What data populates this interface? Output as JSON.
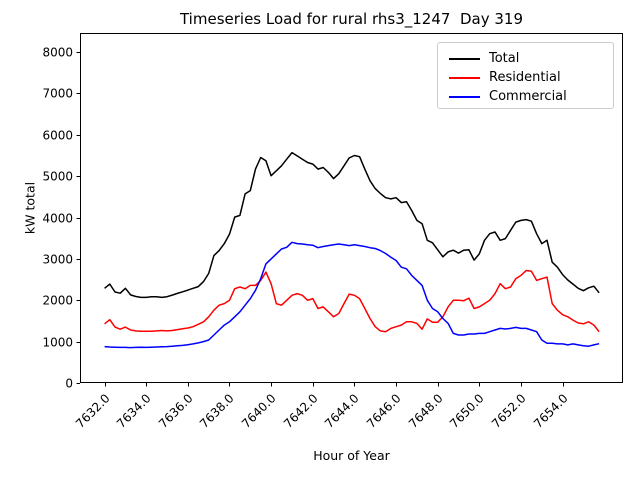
{
  "chart_data": {
    "type": "line",
    "title": "Timeseries Load for rural rhs3_1247  Day 319",
    "xlabel": "Hour of Year",
    "ylabel": "kW total",
    "xlim": [
      7630.82,
      7656.9
    ],
    "ylim": [
      0,
      8460
    ],
    "grid": false,
    "legend_position": "upper right",
    "axis_color": "#000000",
    "background_color": "#ffffff",
    "xticks": {
      "values": [
        7632,
        7634,
        7636,
        7638,
        7640,
        7642,
        7644,
        7646,
        7648,
        7650,
        7652,
        7654
      ],
      "labels": [
        "7632.0",
        "7634.0",
        "7636.0",
        "7638.0",
        "7640.0",
        "7642.0",
        "7644.0",
        "7646.0",
        "7648.0",
        "7650.0",
        "7652.0",
        "7654.0"
      ],
      "rotation_deg": 45
    },
    "yticks": {
      "values": [
        0,
        1000,
        2000,
        3000,
        4000,
        5000,
        6000,
        7000,
        8000
      ],
      "labels": [
        "0",
        "1000",
        "2000",
        "3000",
        "4000",
        "5000",
        "6000",
        "7000",
        "8000"
      ]
    },
    "x_hours": [
      7632.0,
      7632.25,
      7632.5,
      7632.75,
      7633.0,
      7633.25,
      7633.5,
      7633.75,
      7634.0,
      7634.25,
      7634.5,
      7634.75,
      7635.0,
      7635.25,
      7635.5,
      7635.75,
      7636.0,
      7636.25,
      7636.5,
      7636.75,
      7637.0,
      7637.25,
      7637.5,
      7637.75,
      7638.0,
      7638.25,
      7638.5,
      7638.75,
      7639.0,
      7639.25,
      7639.5,
      7639.75,
      7640.0,
      7640.25,
      7640.5,
      7640.75,
      7641.0,
      7641.25,
      7641.5,
      7641.75,
      7642.0,
      7642.25,
      7642.5,
      7642.75,
      7643.0,
      7643.25,
      7643.5,
      7643.75,
      7644.0,
      7644.25,
      7644.5,
      7644.75,
      7645.0,
      7645.25,
      7645.5,
      7645.75,
      7646.0,
      7646.25,
      7646.5,
      7646.75,
      7647.0,
      7647.25,
      7647.5,
      7647.75,
      7648.0,
      7648.25,
      7648.5,
      7648.75,
      7649.0,
      7649.25,
      7649.5,
      7649.75,
      7650.0,
      7650.25,
      7650.5,
      7650.75,
      7651.0,
      7651.25,
      7651.5,
      7651.75,
      7652.0,
      7652.25,
      7652.5,
      7652.75,
      7653.0,
      7653.25,
      7653.5,
      7653.75,
      7654.0,
      7654.25,
      7654.5,
      7654.75,
      7655.0,
      7655.25,
      7655.5,
      7655.75
    ],
    "series": [
      {
        "name": "Total",
        "color": "#000000",
        "values": [
          2290,
          2390,
          2200,
          2170,
          2290,
          2130,
          2090,
          2070,
          2070,
          2085,
          2085,
          2070,
          2085,
          2125,
          2165,
          2205,
          2245,
          2290,
          2330,
          2450,
          2650,
          3080,
          3200,
          3370,
          3600,
          4010,
          4050,
          4570,
          4650,
          5170,
          5450,
          5370,
          5010,
          5130,
          5250,
          5410,
          5570,
          5490,
          5410,
          5330,
          5290,
          5170,
          5210,
          5090,
          4940,
          5060,
          5250,
          5440,
          5500,
          5470,
          5170,
          4890,
          4700,
          4580,
          4480,
          4450,
          4480,
          4360,
          4380,
          4170,
          3930,
          3850,
          3450,
          3390,
          3220,
          3050,
          3170,
          3210,
          3140,
          3210,
          3220,
          2970,
          3120,
          3450,
          3610,
          3650,
          3450,
          3490,
          3690,
          3890,
          3930,
          3950,
          3910,
          3610,
          3370,
          3450,
          2920,
          2800,
          2620,
          2490,
          2390,
          2290,
          2230,
          2300,
          2340,
          2180
        ]
      },
      {
        "name": "Residential",
        "color": "#ff0000",
        "values": [
          1430,
          1530,
          1350,
          1300,
          1350,
          1280,
          1260,
          1250,
          1250,
          1250,
          1260,
          1270,
          1260,
          1270,
          1290,
          1310,
          1330,
          1360,
          1420,
          1480,
          1600,
          1760,
          1880,
          1920,
          2000,
          2280,
          2320,
          2280,
          2360,
          2360,
          2480,
          2680,
          2400,
          1920,
          1880,
          2000,
          2120,
          2160,
          2120,
          2000,
          2040,
          1800,
          1840,
          1720,
          1600,
          1680,
          1920,
          2150,
          2120,
          2040,
          1800,
          1560,
          1360,
          1260,
          1240,
          1320,
          1360,
          1400,
          1480,
          1480,
          1440,
          1300,
          1550,
          1470,
          1470,
          1600,
          1840,
          2000,
          2000,
          1990,
          2050,
          1800,
          1840,
          1920,
          2000,
          2160,
          2400,
          2280,
          2320,
          2520,
          2600,
          2720,
          2700,
          2480,
          2520,
          2560,
          1920,
          1760,
          1650,
          1600,
          1520,
          1450,
          1430,
          1480,
          1400,
          1240
        ]
      },
      {
        "name": "Commercial",
        "color": "#0000ff",
        "values": [
          880,
          870,
          865,
          860,
          860,
          855,
          860,
          865,
          860,
          865,
          870,
          875,
          880,
          890,
          900,
          910,
          925,
          945,
          970,
          1000,
          1040,
          1160,
          1280,
          1400,
          1480,
          1600,
          1720,
          1880,
          2040,
          2240,
          2520,
          2880,
          3000,
          3120,
          3240,
          3280,
          3400,
          3370,
          3360,
          3340,
          3330,
          3270,
          3300,
          3320,
          3340,
          3360,
          3340,
          3320,
          3340,
          3320,
          3300,
          3270,
          3250,
          3200,
          3130,
          3040,
          2960,
          2800,
          2760,
          2600,
          2480,
          2360,
          2000,
          1800,
          1720,
          1560,
          1440,
          1200,
          1160,
          1160,
          1185,
          1185,
          1200,
          1200,
          1240,
          1280,
          1320,
          1305,
          1320,
          1345,
          1320,
          1320,
          1280,
          1240,
          1040,
          960,
          960,
          945,
          945,
          920,
          945,
          920,
          900,
          890,
          920,
          950
        ]
      }
    ]
  }
}
